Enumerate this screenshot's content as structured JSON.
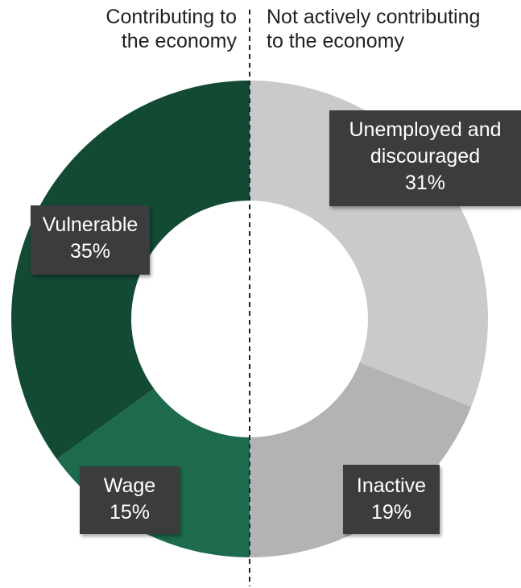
{
  "groups": {
    "left": {
      "line1": "Contributing to",
      "line2": "the economy"
    },
    "right": {
      "line1": "Not actively contributing",
      "line2": "to the economy"
    }
  },
  "chart_data": {
    "type": "pie",
    "donut": true,
    "title": "",
    "unit": "%",
    "slices": [
      {
        "name": "Unemployed and discouraged",
        "label_lines": [
          "Unemployed and",
          "discouraged"
        ],
        "value": 31,
        "value_label": "31%",
        "color": "#c9cacc",
        "group": "Not actively contributing to the economy"
      },
      {
        "name": "Inactive",
        "label_lines": [
          "Inactive"
        ],
        "value": 19,
        "value_label": "19%",
        "color": "#b2b3b5",
        "group": "Not actively contributing to the economy"
      },
      {
        "name": "Wage",
        "label_lines": [
          "Wage"
        ],
        "value": 15,
        "value_label": "15%",
        "color": "#1d6b4c",
        "group": "Contributing to the economy"
      },
      {
        "name": "Vulnerable",
        "label_lines": [
          "Vulnerable"
        ],
        "value": 35,
        "value_label": "35%",
        "color": "#124a33",
        "group": "Contributing to the economy"
      }
    ]
  }
}
